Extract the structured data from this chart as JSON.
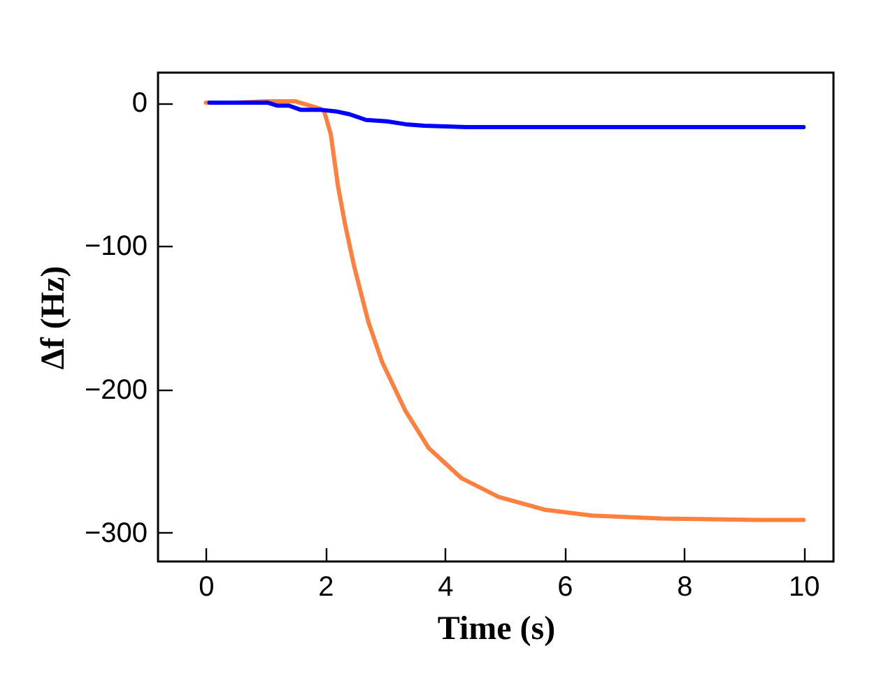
{
  "chart_data": {
    "type": "line",
    "xlabel": "Time (s)",
    "ylabel": "Δf (Hz)",
    "xlim": [
      -0.8,
      10.5
    ],
    "ylim": [
      -320,
      21
    ],
    "xticks": [
      0,
      2,
      4,
      6,
      8,
      10
    ],
    "yticks": [
      -300,
      -200,
      -100,
      0
    ],
    "series": [
      {
        "color": "#ff7f3f",
        "x": [
          0,
          0.5,
          1.0,
          1.5,
          1.9,
          1.98,
          2.09,
          2.21,
          2.33,
          2.48,
          2.72,
          2.95,
          3.34,
          3.73,
          4.28,
          4.9,
          5.68,
          6.46,
          7.63,
          9.2,
          10
        ],
        "values": [
          0,
          0,
          1,
          1,
          -4,
          -6,
          -22,
          -58,
          -85,
          -114,
          -153,
          -181,
          -215,
          -241,
          -262,
          -275,
          -284,
          -288,
          -290,
          -291,
          -291
        ]
      },
      {
        "color": "#0000ff",
        "x": [
          0.06,
          1.04,
          1.19,
          1.39,
          1.59,
          1.94,
          2.17,
          2.4,
          2.68,
          3.03,
          3.34,
          3.65,
          4.36,
          5.53,
          10
        ],
        "values": [
          0,
          0,
          -2,
          -2,
          -5,
          -5,
          -6,
          -8,
          -12,
          -13,
          -15,
          -16,
          -17,
          -17,
          -17
        ]
      }
    ]
  }
}
